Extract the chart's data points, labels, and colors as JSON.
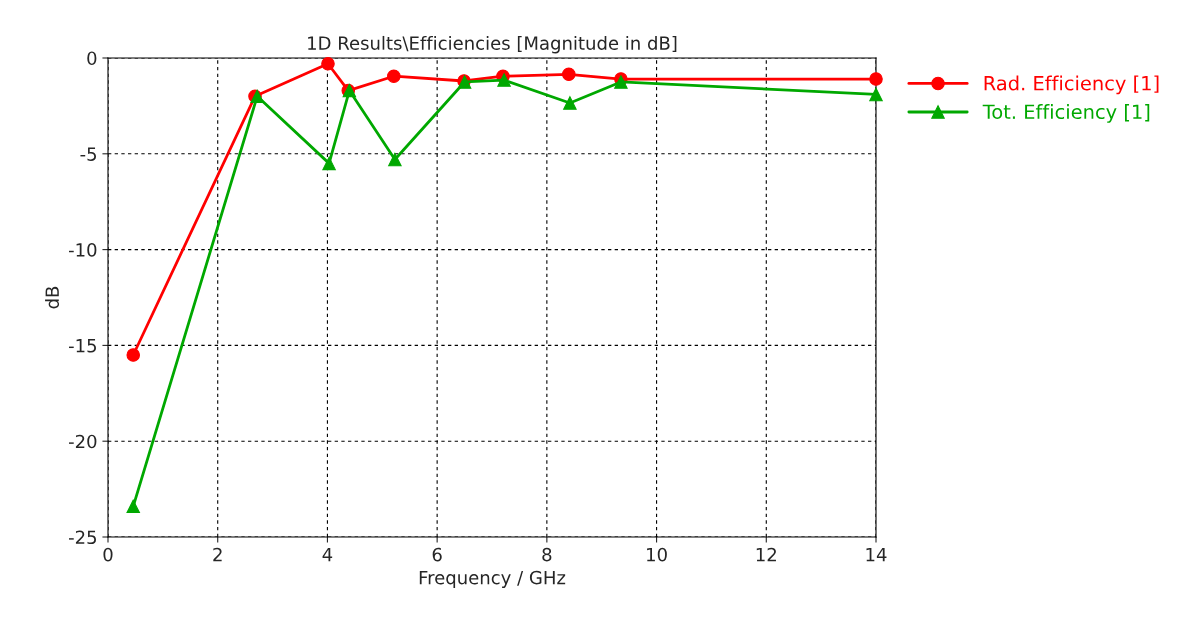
{
  "chart_data": {
    "type": "line",
    "title": "1D Results\\Efficiencies [Magnitude in dB]",
    "xlabel": "Frequency / GHz",
    "ylabel": "dB",
    "xlim": [
      0,
      14
    ],
    "xticks": [
      0,
      2,
      4,
      6,
      8,
      10,
      12,
      14
    ],
    "ylim": [
      -25,
      0
    ],
    "yticks": [
      -25,
      -20,
      -15,
      -10,
      -5,
      0
    ],
    "grid": true,
    "legend": "top right",
    "line_style": "solid",
    "series": [
      {
        "name": "Rad. Efficiency [1]",
        "color": "#ff0000",
        "marker": "circle",
        "x": [
          0.46,
          2.68,
          4.01,
          4.38,
          5.21,
          6.49,
          7.2,
          8.4,
          9.35,
          14
        ],
        "values": [
          -15.5,
          -2.0,
          -0.3,
          -1.7,
          -0.95,
          -1.2,
          -0.95,
          -0.85,
          -1.1,
          -1.1
        ]
      },
      {
        "name": "Tot. Efficiency [1]",
        "color": "#00a800",
        "marker": "triangle",
        "x": [
          0.46,
          2.72,
          4.03,
          4.4,
          5.23,
          6.5,
          7.22,
          8.42,
          9.35,
          14
        ],
        "values": [
          -23.4,
          -2.0,
          -5.5,
          -1.7,
          -5.3,
          -1.25,
          -1.15,
          -2.35,
          -1.25,
          -1.9
        ]
      }
    ]
  }
}
